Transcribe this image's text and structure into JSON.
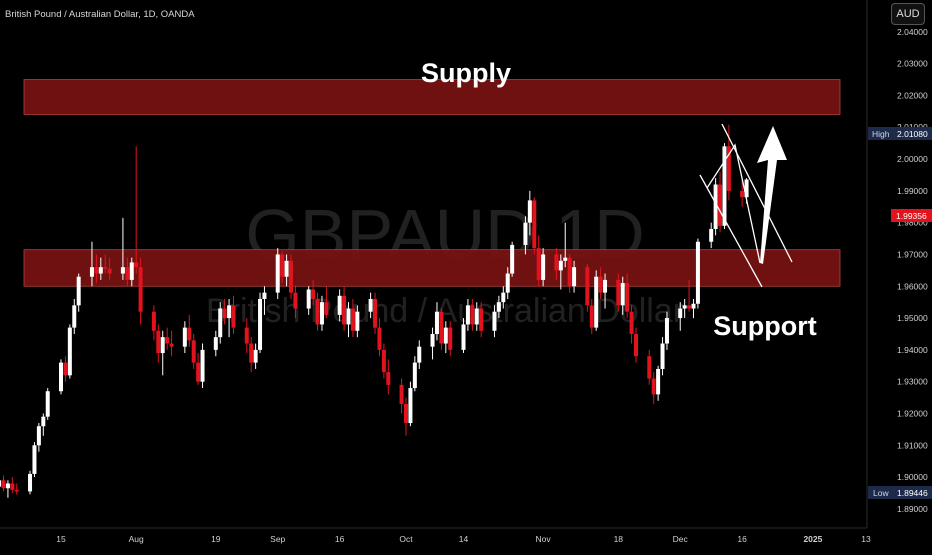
{
  "header": {
    "symbol_title": "British Pound / Australian Dollar, 1D, OANDA",
    "currency": "AUD"
  },
  "watermark": {
    "symbol": "GBPAUD,1D",
    "description": "British Pound / Australian Dollar"
  },
  "annotations": {
    "supply_label": "Supply",
    "support_label": "Support"
  },
  "colors": {
    "background": "#000000",
    "bull_candle": "#ffffff",
    "bear_candle": "#e3131e",
    "zone_fill": "#7a1212",
    "high_badge": "#1e2a4a",
    "price_badge": "#e3131e"
  },
  "chart_data": {
    "type": "candlestick",
    "xlabel": "",
    "ylabel": "",
    "ylim": [
      1.884,
      2.05
    ],
    "y_ticks": [
      "2.04000",
      "2.03000",
      "2.02000",
      "2.01000",
      "2.00000",
      "1.99000",
      "1.98000",
      "1.97000",
      "1.96000",
      "1.95000",
      "1.94000",
      "1.93000",
      "1.92000",
      "1.91000",
      "1.90000",
      "1.89000"
    ],
    "x_ticks": [
      {
        "label": "15",
        "date": "2024-07-15"
      },
      {
        "label": "Aug",
        "date": "2024-08-01"
      },
      {
        "label": "19",
        "date": "2024-08-19"
      },
      {
        "label": "Sep",
        "date": "2024-09-02"
      },
      {
        "label": "16",
        "date": "2024-09-16"
      },
      {
        "label": "Oct",
        "date": "2024-10-01"
      },
      {
        "label": "14",
        "date": "2024-10-14"
      },
      {
        "label": "Nov",
        "date": "2024-11-01"
      },
      {
        "label": "18",
        "date": "2024-11-18"
      },
      {
        "label": "Dec",
        "date": "2024-12-02"
      },
      {
        "label": "16",
        "date": "2024-12-16"
      },
      {
        "label": "2025",
        "date": "2025-01-01"
      },
      {
        "label": "13",
        "date": "2025-01-13"
      }
    ],
    "high_label": "High",
    "high_value": "2.01080",
    "low_label": "Low",
    "low_value": "1.89446",
    "last_price": "1.99356",
    "zones": [
      {
        "name": "Supply",
        "from": 2.014,
        "to": 2.025
      },
      {
        "name": "Support",
        "from": 1.96,
        "to": 1.9715
      }
    ],
    "candles": [
      {
        "date": "2024-07-01",
        "o": 1.897,
        "h": 1.901,
        "l": 1.894,
        "c": 1.899
      },
      {
        "date": "2024-07-02",
        "o": 1.899,
        "h": 1.9005,
        "l": 1.8955,
        "c": 1.8965
      },
      {
        "date": "2024-07-03",
        "o": 1.8965,
        "h": 1.899,
        "l": 1.8935,
        "c": 1.898
      },
      {
        "date": "2024-07-04",
        "o": 1.898,
        "h": 1.9,
        "l": 1.895,
        "c": 1.896
      },
      {
        "date": "2024-07-05",
        "o": 1.896,
        "h": 1.898,
        "l": 1.8945,
        "c": 1.8955
      },
      {
        "date": "2024-07-08",
        "o": 1.8955,
        "h": 1.902,
        "l": 1.8946,
        "c": 1.901
      },
      {
        "date": "2024-07-09",
        "o": 1.901,
        "h": 1.911,
        "l": 1.9,
        "c": 1.91
      },
      {
        "date": "2024-07-10",
        "o": 1.91,
        "h": 1.917,
        "l": 1.908,
        "c": 1.916
      },
      {
        "date": "2024-07-11",
        "o": 1.916,
        "h": 1.92,
        "l": 1.913,
        "c": 1.919
      },
      {
        "date": "2024-07-12",
        "o": 1.919,
        "h": 1.928,
        "l": 1.918,
        "c": 1.927
      },
      {
        "date": "2024-07-15",
        "o": 1.927,
        "h": 1.937,
        "l": 1.926,
        "c": 1.936
      },
      {
        "date": "2024-07-16",
        "o": 1.936,
        "h": 1.938,
        "l": 1.93,
        "c": 1.932
      },
      {
        "date": "2024-07-17",
        "o": 1.932,
        "h": 1.948,
        "l": 1.931,
        "c": 1.947
      },
      {
        "date": "2024-07-18",
        "o": 1.947,
        "h": 1.956,
        "l": 1.945,
        "c": 1.954
      },
      {
        "date": "2024-07-19",
        "o": 1.954,
        "h": 1.964,
        "l": 1.952,
        "c": 1.963
      },
      {
        "date": "2024-07-22",
        "o": 1.963,
        "h": 1.974,
        "l": 1.96,
        "c": 1.966
      },
      {
        "date": "2024-07-23",
        "o": 1.966,
        "h": 1.97,
        "l": 1.961,
        "c": 1.964
      },
      {
        "date": "2024-07-24",
        "o": 1.964,
        "h": 1.969,
        "l": 1.962,
        "c": 1.966
      },
      {
        "date": "2024-07-25",
        "o": 1.966,
        "h": 1.97,
        "l": 1.964,
        "c": 1.9655
      },
      {
        "date": "2024-07-26",
        "o": 1.9655,
        "h": 1.969,
        "l": 1.962,
        "c": 1.964
      },
      {
        "date": "2024-07-29",
        "o": 1.964,
        "h": 1.9815,
        "l": 1.962,
        "c": 1.966
      },
      {
        "date": "2024-07-30",
        "o": 1.966,
        "h": 1.969,
        "l": 1.96,
        "c": 1.962
      },
      {
        "date": "2024-07-31",
        "o": 1.962,
        "h": 1.969,
        "l": 1.96,
        "c": 1.9675
      },
      {
        "date": "2024-08-01",
        "o": 1.9675,
        "h": 2.004,
        "l": 1.964,
        "c": 1.966
      },
      {
        "date": "2024-08-02",
        "o": 1.966,
        "h": 1.969,
        "l": 1.948,
        "c": 1.952
      },
      {
        "date": "2024-08-05",
        "o": 1.952,
        "h": 1.954,
        "l": 1.943,
        "c": 1.946
      },
      {
        "date": "2024-08-06",
        "o": 1.946,
        "h": 1.948,
        "l": 1.936,
        "c": 1.939
      },
      {
        "date": "2024-08-07",
        "o": 1.939,
        "h": 1.946,
        "l": 1.932,
        "c": 1.944
      },
      {
        "date": "2024-08-08",
        "o": 1.944,
        "h": 1.947,
        "l": 1.94,
        "c": 1.942
      },
      {
        "date": "2024-08-09",
        "o": 1.942,
        "h": 1.946,
        "l": 1.938,
        "c": 1.941
      },
      {
        "date": "2024-08-12",
        "o": 1.941,
        "h": 1.949,
        "l": 1.939,
        "c": 1.947
      },
      {
        "date": "2024-08-13",
        "o": 1.947,
        "h": 1.951,
        "l": 1.941,
        "c": 1.943
      },
      {
        "date": "2024-08-14",
        "o": 1.943,
        "h": 1.945,
        "l": 1.934,
        "c": 1.936
      },
      {
        "date": "2024-08-15",
        "o": 1.936,
        "h": 1.939,
        "l": 1.929,
        "c": 1.93
      },
      {
        "date": "2024-08-16",
        "o": 1.93,
        "h": 1.942,
        "l": 1.928,
        "c": 1.94
      },
      {
        "date": "2024-08-19",
        "o": 1.94,
        "h": 1.946,
        "l": 1.938,
        "c": 1.944
      },
      {
        "date": "2024-08-20",
        "o": 1.944,
        "h": 1.955,
        "l": 1.942,
        "c": 1.953
      },
      {
        "date": "2024-08-21",
        "o": 1.953,
        "h": 1.956,
        "l": 1.948,
        "c": 1.95
      },
      {
        "date": "2024-08-22",
        "o": 1.95,
        "h": 1.956,
        "l": 1.944,
        "c": 1.954
      },
      {
        "date": "2024-08-23",
        "o": 1.954,
        "h": 1.957,
        "l": 1.945,
        "c": 1.947
      },
      {
        "date": "2024-08-26",
        "o": 1.947,
        "h": 1.95,
        "l": 1.939,
        "c": 1.942
      },
      {
        "date": "2024-08-27",
        "o": 1.942,
        "h": 1.944,
        "l": 1.933,
        "c": 1.936
      },
      {
        "date": "2024-08-28",
        "o": 1.936,
        "h": 1.942,
        "l": 1.934,
        "c": 1.94
      },
      {
        "date": "2024-08-29",
        "o": 1.94,
        "h": 1.958,
        "l": 1.939,
        "c": 1.956
      },
      {
        "date": "2024-08-30",
        "o": 1.956,
        "h": 1.96,
        "l": 1.951,
        "c": 1.958
      },
      {
        "date": "2024-09-02",
        "o": 1.958,
        "h": 1.972,
        "l": 1.956,
        "c": 1.97
      },
      {
        "date": "2024-09-03",
        "o": 1.97,
        "h": 1.971,
        "l": 1.961,
        "c": 1.963
      },
      {
        "date": "2024-09-04",
        "o": 1.963,
        "h": 1.97,
        "l": 1.96,
        "c": 1.968
      },
      {
        "date": "2024-09-05",
        "o": 1.968,
        "h": 1.97,
        "l": 1.956,
        "c": 1.958
      },
      {
        "date": "2024-09-06",
        "o": 1.958,
        "h": 1.96,
        "l": 1.95,
        "c": 1.953
      },
      {
        "date": "2024-09-09",
        "o": 1.953,
        "h": 1.96,
        "l": 1.951,
        "c": 1.959
      },
      {
        "date": "2024-09-10",
        "o": 1.959,
        "h": 1.962,
        "l": 1.954,
        "c": 1.956
      },
      {
        "date": "2024-09-11",
        "o": 1.956,
        "h": 1.958,
        "l": 1.946,
        "c": 1.948
      },
      {
        "date": "2024-09-12",
        "o": 1.948,
        "h": 1.957,
        "l": 1.946,
        "c": 1.955
      },
      {
        "date": "2024-09-13",
        "o": 1.955,
        "h": 1.96,
        "l": 1.95,
        "c": 1.951
      },
      {
        "date": "2024-09-16",
        "o": 1.951,
        "h": 1.959,
        "l": 1.949,
        "c": 1.957
      },
      {
        "date": "2024-09-17",
        "o": 1.957,
        "h": 1.96,
        "l": 1.946,
        "c": 1.948
      },
      {
        "date": "2024-09-18",
        "o": 1.948,
        "h": 1.955,
        "l": 1.944,
        "c": 1.953
      },
      {
        "date": "2024-09-19",
        "o": 1.953,
        "h": 1.956,
        "l": 1.944,
        "c": 1.946
      },
      {
        "date": "2024-09-20",
        "o": 1.946,
        "h": 1.954,
        "l": 1.944,
        "c": 1.952
      },
      {
        "date": "2024-09-23",
        "o": 1.952,
        "h": 1.958,
        "l": 1.95,
        "c": 1.956
      },
      {
        "date": "2024-09-24",
        "o": 1.956,
        "h": 1.958,
        "l": 1.945,
        "c": 1.947
      },
      {
        "date": "2024-09-25",
        "o": 1.947,
        "h": 1.95,
        "l": 1.938,
        "c": 1.94
      },
      {
        "date": "2024-09-26",
        "o": 1.94,
        "h": 1.942,
        "l": 1.931,
        "c": 1.933
      },
      {
        "date": "2024-09-27",
        "o": 1.933,
        "h": 1.937,
        "l": 1.926,
        "c": 1.929
      },
      {
        "date": "2024-09-30",
        "o": 1.929,
        "h": 1.931,
        "l": 1.92,
        "c": 1.923
      },
      {
        "date": "2024-10-01",
        "o": 1.923,
        "h": 1.925,
        "l": 1.913,
        "c": 1.917
      },
      {
        "date": "2024-10-02",
        "o": 1.917,
        "h": 1.93,
        "l": 1.916,
        "c": 1.928
      },
      {
        "date": "2024-10-03",
        "o": 1.928,
        "h": 1.938,
        "l": 1.927,
        "c": 1.936
      },
      {
        "date": "2024-10-04",
        "o": 1.936,
        "h": 1.943,
        "l": 1.934,
        "c": 1.941
      },
      {
        "date": "2024-10-07",
        "o": 1.941,
        "h": 1.947,
        "l": 1.937,
        "c": 1.945
      },
      {
        "date": "2024-10-08",
        "o": 1.945,
        "h": 1.955,
        "l": 1.943,
        "c": 1.952
      },
      {
        "date": "2024-10-09",
        "o": 1.952,
        "h": 1.953,
        "l": 1.94,
        "c": 1.942
      },
      {
        "date": "2024-10-10",
        "o": 1.942,
        "h": 1.949,
        "l": 1.939,
        "c": 1.947
      },
      {
        "date": "2024-10-11",
        "o": 1.947,
        "h": 1.949,
        "l": 1.938,
        "c": 1.94
      },
      {
        "date": "2024-10-14",
        "o": 1.94,
        "h": 1.95,
        "l": 1.939,
        "c": 1.948
      },
      {
        "date": "2024-10-15",
        "o": 1.948,
        "h": 1.956,
        "l": 1.946,
        "c": 1.954
      },
      {
        "date": "2024-10-16",
        "o": 1.954,
        "h": 1.956,
        "l": 1.946,
        "c": 1.948
      },
      {
        "date": "2024-10-17",
        "o": 1.948,
        "h": 1.955,
        "l": 1.946,
        "c": 1.953
      },
      {
        "date": "2024-10-18",
        "o": 1.953,
        "h": 1.955,
        "l": 1.944,
        "c": 1.946
      },
      {
        "date": "2024-10-21",
        "o": 1.946,
        "h": 1.954,
        "l": 1.944,
        "c": 1.952
      },
      {
        "date": "2024-10-22",
        "o": 1.952,
        "h": 1.957,
        "l": 1.95,
        "c": 1.955
      },
      {
        "date": "2024-10-23",
        "o": 1.955,
        "h": 1.96,
        "l": 1.953,
        "c": 1.958
      },
      {
        "date": "2024-10-24",
        "o": 1.958,
        "h": 1.966,
        "l": 1.956,
        "c": 1.964
      },
      {
        "date": "2024-10-25",
        "o": 1.964,
        "h": 1.974,
        "l": 1.963,
        "c": 1.973
      },
      {
        "date": "2024-10-28",
        "o": 1.973,
        "h": 1.982,
        "l": 1.97,
        "c": 1.98
      },
      {
        "date": "2024-10-29",
        "o": 1.98,
        "h": 1.99,
        "l": 1.976,
        "c": 1.987
      },
      {
        "date": "2024-10-30",
        "o": 1.987,
        "h": 1.988,
        "l": 1.97,
        "c": 1.972
      },
      {
        "date": "2024-10-31",
        "o": 1.972,
        "h": 1.976,
        "l": 1.96,
        "c": 1.962
      },
      {
        "date": "2024-11-01",
        "o": 1.962,
        "h": 1.972,
        "l": 1.96,
        "c": 1.97
      },
      {
        "date": "2024-11-04",
        "o": 1.97,
        "h": 1.972,
        "l": 1.962,
        "c": 1.965
      },
      {
        "date": "2024-11-05",
        "o": 1.965,
        "h": 1.97,
        "l": 1.959,
        "c": 1.968
      },
      {
        "date": "2024-11-06",
        "o": 1.968,
        "h": 1.98,
        "l": 1.966,
        "c": 1.969
      },
      {
        "date": "2024-11-07",
        "o": 1.969,
        "h": 1.97,
        "l": 1.958,
        "c": 1.96
      },
      {
        "date": "2024-11-08",
        "o": 1.96,
        "h": 1.968,
        "l": 1.958,
        "c": 1.966
      },
      {
        "date": "2024-11-11",
        "o": 1.966,
        "h": 1.967,
        "l": 1.952,
        "c": 1.954
      },
      {
        "date": "2024-11-12",
        "o": 1.954,
        "h": 1.956,
        "l": 1.945,
        "c": 1.947
      },
      {
        "date": "2024-11-13",
        "o": 1.947,
        "h": 1.965,
        "l": 1.946,
        "c": 1.963
      },
      {
        "date": "2024-11-14",
        "o": 1.963,
        "h": 1.966,
        "l": 1.956,
        "c": 1.958
      },
      {
        "date": "2024-11-15",
        "o": 1.958,
        "h": 1.964,
        "l": 1.953,
        "c": 1.962
      },
      {
        "date": "2024-11-18",
        "o": 1.962,
        "h": 1.964,
        "l": 1.952,
        "c": 1.954
      },
      {
        "date": "2024-11-19",
        "o": 1.954,
        "h": 1.963,
        "l": 1.951,
        "c": 1.961
      },
      {
        "date": "2024-11-20",
        "o": 1.961,
        "h": 1.964,
        "l": 1.95,
        "c": 1.952
      },
      {
        "date": "2024-11-21",
        "o": 1.952,
        "h": 1.954,
        "l": 1.942,
        "c": 1.945
      },
      {
        "date": "2024-11-22",
        "o": 1.945,
        "h": 1.947,
        "l": 1.936,
        "c": 1.938
      },
      {
        "date": "2024-11-25",
        "o": 1.938,
        "h": 1.94,
        "l": 1.929,
        "c": 1.931
      },
      {
        "date": "2024-11-26",
        "o": 1.931,
        "h": 1.933,
        "l": 1.923,
        "c": 1.926
      },
      {
        "date": "2024-11-27",
        "o": 1.926,
        "h": 1.935,
        "l": 1.924,
        "c": 1.934
      },
      {
        "date": "2024-11-28",
        "o": 1.934,
        "h": 1.944,
        "l": 1.932,
        "c": 1.942
      },
      {
        "date": "2024-11-29",
        "o": 1.942,
        "h": 1.952,
        "l": 1.94,
        "c": 1.95
      },
      {
        "date": "2024-12-02",
        "o": 1.95,
        "h": 1.955,
        "l": 1.946,
        "c": 1.953
      },
      {
        "date": "2024-12-03",
        "o": 1.953,
        "h": 1.956,
        "l": 1.95,
        "c": 1.954
      },
      {
        "date": "2024-12-04",
        "o": 1.954,
        "h": 1.962,
        "l": 1.952,
        "c": 1.953
      },
      {
        "date": "2024-12-05",
        "o": 1.953,
        "h": 1.956,
        "l": 1.95,
        "c": 1.9545
      },
      {
        "date": "2024-12-06",
        "o": 1.9545,
        "h": 1.975,
        "l": 1.953,
        "c": 1.974
      },
      {
        "date": "2024-12-09",
        "o": 1.974,
        "h": 1.98,
        "l": 1.972,
        "c": 1.978
      },
      {
        "date": "2024-12-10",
        "o": 1.978,
        "h": 1.994,
        "l": 1.976,
        "c": 1.992
      },
      {
        "date": "2024-12-11",
        "o": 1.992,
        "h": 1.996,
        "l": 1.977,
        "c": 1.979
      },
      {
        "date": "2024-12-12",
        "o": 1.979,
        "h": 2.005,
        "l": 1.978,
        "c": 2.004
      },
      {
        "date": "2024-12-13",
        "o": 2.004,
        "h": 2.0108,
        "l": 1.987,
        "c": 1.99
      },
      {
        "date": "2024-12-16",
        "o": 1.99,
        "h": 1.994,
        "l": 1.985,
        "c": 1.988
      },
      {
        "date": "2024-12-17",
        "o": 1.988,
        "h": 1.994,
        "l": 1.986,
        "c": 1.99356
      }
    ]
  }
}
